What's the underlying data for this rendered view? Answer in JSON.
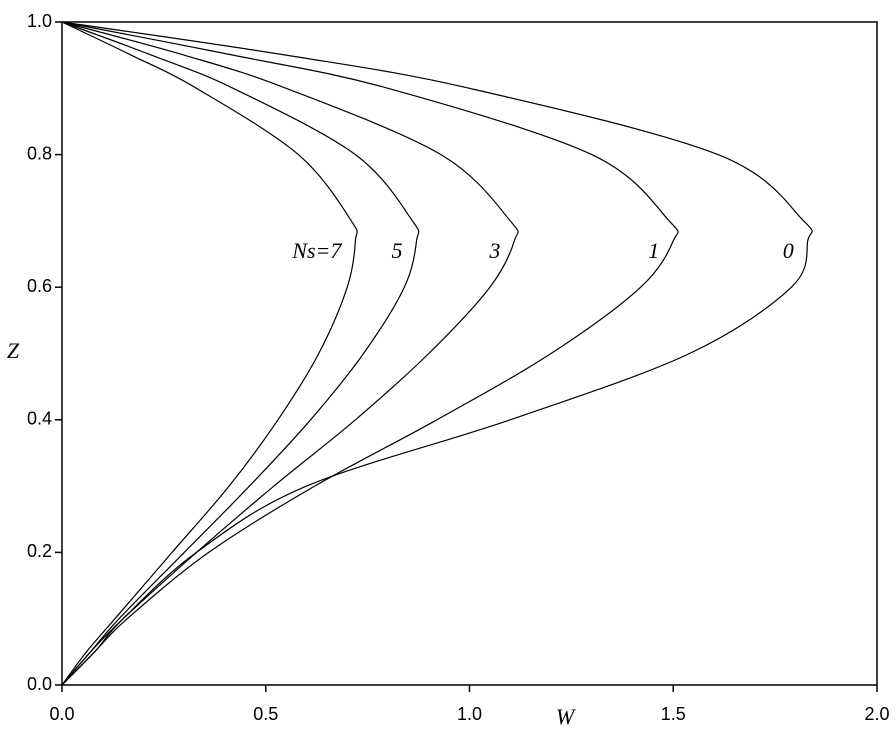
{
  "chart_data": {
    "type": "line",
    "x_label": "W",
    "y_label": "Z",
    "xlim": [
      0,
      2
    ],
    "ylim": [
      0,
      1
    ],
    "xticks": [
      {
        "value": 0,
        "label": "0.0"
      },
      {
        "value": 0.5,
        "label": "0.5"
      },
      {
        "value": 1,
        "label": "1.0"
      },
      {
        "value": 1.5,
        "label": "1.5"
      },
      {
        "value": 2,
        "label": "2.0"
      }
    ],
    "yticks": [
      {
        "value": 0,
        "label": "0.0"
      },
      {
        "value": 0.2,
        "label": "0.2"
      },
      {
        "value": 0.4,
        "label": "0.4"
      },
      {
        "value": 0.6,
        "label": "0.6"
      },
      {
        "value": 0.8,
        "label": "0.8"
      },
      {
        "value": 1,
        "label": "1.0"
      }
    ],
    "color": "#000000",
    "series": [
      {
        "name": "0",
        "x": [
          0,
          0.08,
          0.15,
          0.33,
          0.6,
          1.1,
          1.54,
          1.79,
          1.83,
          1.82,
          1.61,
          1.0,
          0.55,
          0
        ],
        "values": [
          0,
          0.05,
          0.1,
          0.2,
          0.3,
          0.4,
          0.5,
          0.6,
          0.67,
          0.7,
          0.8,
          0.9,
          0.95,
          1
        ]
      },
      {
        "name": "1",
        "x": [
          0,
          0.08,
          0.16,
          0.36,
          0.62,
          0.92,
          1.2,
          1.42,
          1.5,
          1.49,
          1.3,
          0.8,
          0.42,
          0
        ],
        "values": [
          0,
          0.05,
          0.1,
          0.2,
          0.3,
          0.4,
          0.5,
          0.6,
          0.67,
          0.7,
          0.8,
          0.9,
          0.95,
          1
        ]
      },
      {
        "name": "3",
        "x": [
          0,
          0.07,
          0.15,
          0.33,
          0.52,
          0.72,
          0.9,
          1.05,
          1.11,
          1.1,
          0.93,
          0.55,
          0.3,
          0
        ],
        "values": [
          0,
          0.05,
          0.1,
          0.2,
          0.3,
          0.4,
          0.5,
          0.6,
          0.67,
          0.7,
          0.8,
          0.9,
          0.95,
          1
        ]
      },
      {
        "name": "5",
        "x": [
          0,
          0.07,
          0.14,
          0.3,
          0.46,
          0.61,
          0.74,
          0.84,
          0.87,
          0.86,
          0.72,
          0.42,
          0.22,
          0
        ],
        "values": [
          0,
          0.05,
          0.1,
          0.2,
          0.3,
          0.4,
          0.5,
          0.6,
          0.67,
          0.7,
          0.8,
          0.9,
          0.95,
          1
        ]
      },
      {
        "name": "Ns=7",
        "x": [
          0,
          0.06,
          0.13,
          0.27,
          0.41,
          0.53,
          0.63,
          0.7,
          0.72,
          0.71,
          0.58,
          0.33,
          0.17,
          0
        ],
        "values": [
          0,
          0.05,
          0.1,
          0.2,
          0.3,
          0.4,
          0.5,
          0.6,
          0.67,
          0.7,
          0.8,
          0.9,
          0.95,
          1
        ]
      }
    ]
  }
}
